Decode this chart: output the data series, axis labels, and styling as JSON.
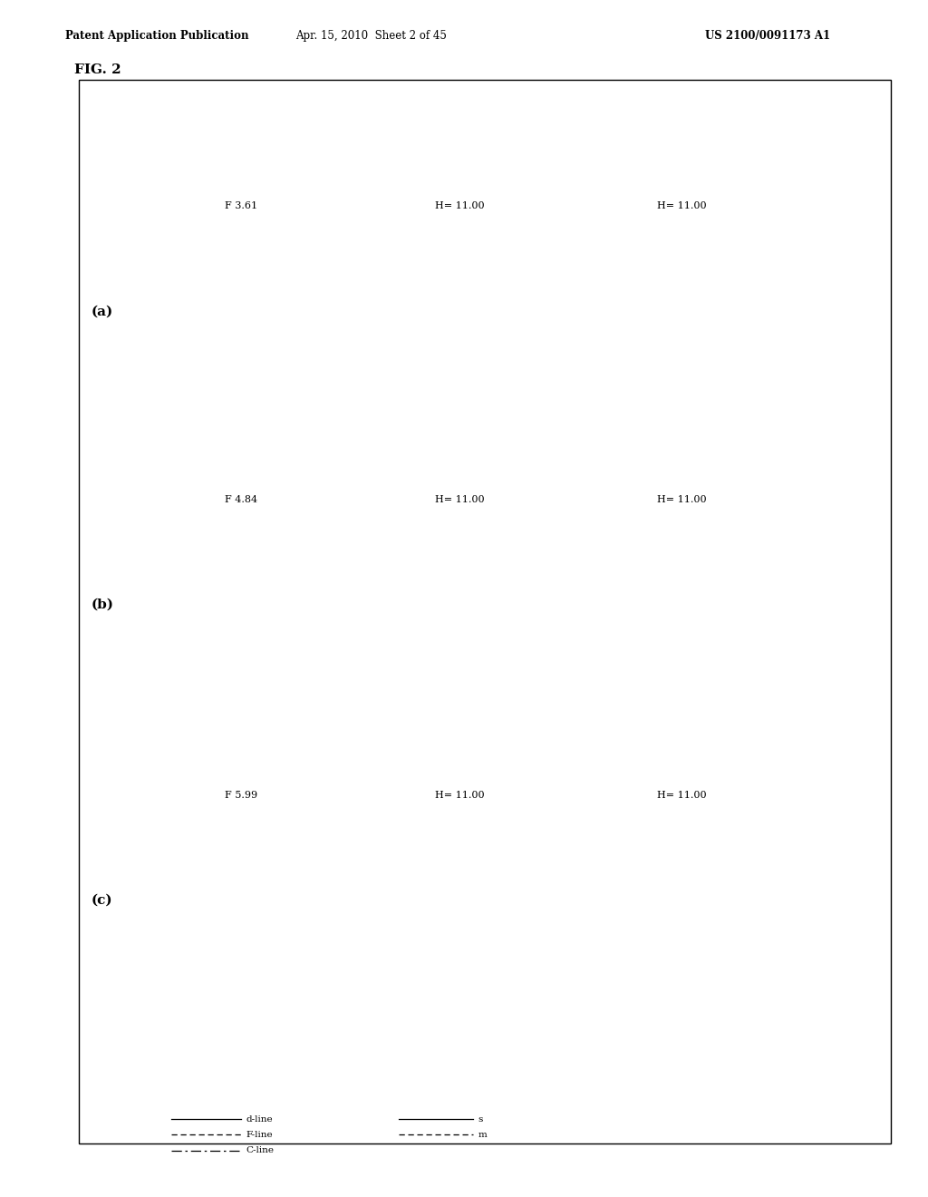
{
  "fig_label": "FIG. 2",
  "header_left": "Patent Application Publication",
  "header_center": "Apr. 15, 2010  Sheet 2 of 45",
  "header_right": "US 2100/0091173 A1",
  "sa_xlim": [
    -0.5,
    0.5
  ],
  "ast_xlim": [
    -0.5,
    0.5
  ],
  "dis_xlim": [
    -10.0,
    10.0
  ],
  "ylim": [
    0,
    11.0
  ],
  "sa_xticks": [
    -0.5,
    0.0,
    0.5
  ],
  "ast_xticks": [
    -0.5,
    0.0,
    0.5
  ],
  "dis_xticks": [
    -10.0,
    0.0,
    10.0
  ],
  "ytick_positions": [
    0.0,
    2.75,
    5.5,
    8.25,
    11.0
  ],
  "rows": [
    {
      "label": "(a)",
      "sa_title": "F 3.61",
      "ast_title": "H= 11.00",
      "dis_title": "H= 11.00"
    },
    {
      "label": "(b)",
      "sa_title": "F 4.84",
      "ast_title": "H= 11.00",
      "dis_title": "H= 11.00"
    },
    {
      "label": "(c)",
      "sa_title": "F 5.99",
      "ast_title": "H= 11.00",
      "dis_title": "H= 11.00"
    }
  ],
  "background_color": "#ffffff"
}
